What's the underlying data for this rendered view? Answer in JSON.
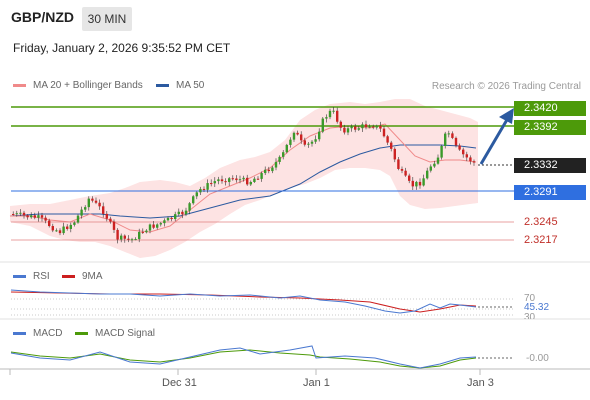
{
  "header": {
    "symbol": "GBP/NZD",
    "timeframe": "30 MIN",
    "datetime": "Friday, January 2, 2026 9:35:52 PM CET"
  },
  "legend": {
    "items": [
      {
        "label": "MA 20 + Bollinger Bands",
        "color": "#f08a8a"
      },
      {
        "label": "MA 50",
        "color": "#2c5aa0"
      }
    ],
    "copyright": "Research © 2026 Trading Central"
  },
  "levels": {
    "resistance_2": "2.3420",
    "resistance_1": "2.3392",
    "last_price": "2.3332",
    "pivot": "2.3291",
    "support_1": "2.3245",
    "support_2": "2.3217"
  },
  "colors": {
    "resistance": "#4d9a0a",
    "pivot": "#2f6fe0",
    "support": "#d9534f",
    "last": "#222222",
    "arrow": "#2c5aa0",
    "bollinger_fill": "#fde3e3",
    "ma20": "#f08a8a",
    "ma50": "#2c5aa0"
  },
  "rsi": {
    "legend": [
      {
        "label": "RSI",
        "color": "#4a78d0"
      },
      {
        "label": "9MA",
        "color": "#cc1f1f"
      }
    ],
    "level_70": "70",
    "value": "45.32",
    "level_30": "30"
  },
  "macd": {
    "legend": [
      {
        "label": "MACD",
        "color": "#4a78d0"
      },
      {
        "label": "MACD Signal",
        "color": "#4d9a0a"
      }
    ],
    "value": "-0.00"
  },
  "xaxis": {
    "labels": [
      "Dec 31",
      "Jan 1",
      "Jan 3"
    ]
  }
}
